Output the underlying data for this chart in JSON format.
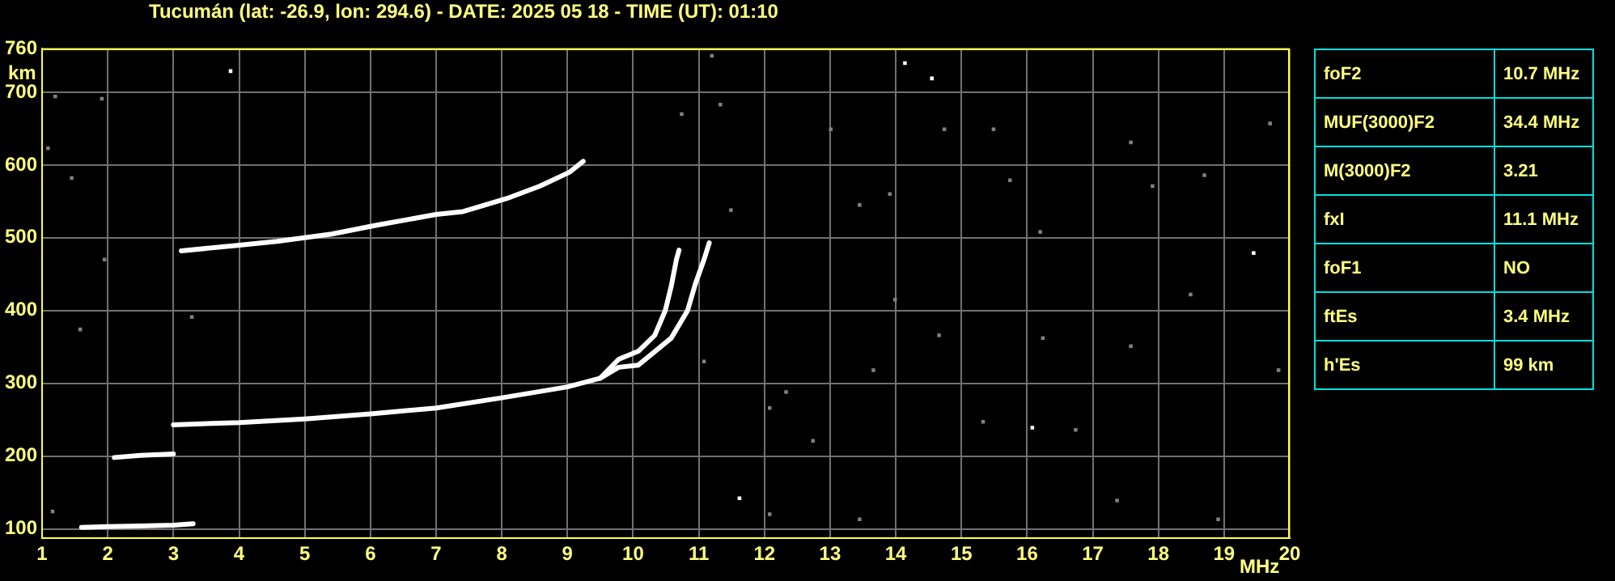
{
  "chart_data": [
    {
      "type": "scatter",
      "title": "Tucumán (lat: -26.9, lon: 294.6) - DATE: 2025 05 18 - TIME (UT): 01:10",
      "xlabel": "MHz",
      "ylabel": "km",
      "xlim": [
        1,
        20
      ],
      "xticks": [
        1,
        2,
        3,
        4,
        5,
        6,
        7,
        8,
        9,
        10,
        11,
        12,
        13,
        14,
        15,
        16,
        17,
        18,
        19,
        20
      ],
      "ylim": [
        87,
        760
      ],
      "yticks": [
        100,
        200,
        300,
        400,
        500,
        600,
        700,
        760
      ],
      "grid": true,
      "legend": false,
      "marker": "square",
      "series": [
        {
          "type": "line",
          "marker": "none",
          "line_style": "solid",
          "color": "#ffffff",
          "x": [
            1.6,
            2.0,
            2.5,
            3.0,
            3.3
          ],
          "values": [
            102,
            103,
            104,
            105,
            107
          ]
        },
        {
          "type": "line",
          "marker": "none",
          "line_style": "solid",
          "color": "#ffffff",
          "x": [
            2.1,
            2.5,
            3.0
          ],
          "values": [
            198,
            201,
            203
          ]
        },
        {
          "type": "line",
          "marker": "none",
          "line_style": "solid",
          "color": "#ffffff",
          "x": [
            3.0,
            4.0,
            5.0,
            6.0,
            7.0,
            8.0,
            9.0,
            9.5,
            9.78,
            10.08,
            10.33,
            10.49,
            10.58,
            10.66,
            10.7
          ],
          "values": [
            243,
            246,
            251,
            258,
            266,
            280,
            295,
            307,
            333,
            344,
            366,
            400,
            433,
            470,
            483
          ]
        },
        {
          "type": "line",
          "marker": "none",
          "line_style": "solid",
          "color": "#ffffff",
          "x": [
            9.5,
            9.78,
            10.08,
            10.58,
            10.83,
            10.95,
            11.08,
            11.16
          ],
          "values": [
            307,
            322,
            325,
            362,
            400,
            437,
            470,
            493
          ]
        },
        {
          "type": "line",
          "marker": "none",
          "line_style": "solid",
          "color": "#ffffff",
          "x": [
            3.12,
            3.91,
            4.58,
            5.41,
            6.08,
            7.0,
            7.41,
            8.08,
            8.58,
            9.03,
            9.24
          ],
          "values": [
            482,
            489,
            495,
            505,
            517,
            532,
            536,
            554,
            571,
            590,
            605
          ]
        },
        {
          "color": "#ffffff",
          "x": [
            3.87,
            14.14,
            14.55,
            16.08,
            19.45,
            11.62
          ],
          "values": [
            729,
            740,
            719,
            239,
            479,
            142
          ]
        },
        {
          "color": "#808080",
          "x": [
            13.45,
            13.91,
            16.2,
            17.91,
            18.7,
            15.49,
            19.7,
            13.01,
            17.58,
            14.74,
            15.33,
            16.74,
            17.37,
            13.45,
            18.91,
            14.66,
            17.58,
            13.66,
            18.49,
            15.74,
            12.74,
            19.83,
            16.24,
            13.99,
            1.2,
            1.91,
            1.45,
            1.09,
            1.95,
            10.74,
            11.33,
            11.2,
            1.16,
            1.58,
            12.08,
            3.28,
            11.08,
            12.33,
            11.49,
            12.08
          ],
          "values": [
            545,
            560,
            508,
            571,
            586,
            649,
            657,
            649,
            631,
            649,
            247,
            236,
            139,
            113,
            113,
            366,
            351,
            318,
            422,
            579,
            221,
            318,
            362,
            415,
            694,
            691,
            582,
            623,
            470,
            670,
            683,
            750,
            124,
            374,
            120,
            391,
            330,
            288,
            538,
            266
          ]
        }
      ]
    },
    {
      "type": "other",
      "categories": [
        "foF2",
        "MUF(3000)F2",
        "M(3000)F2",
        "fxI",
        "foF1",
        "ftEs",
        "h'Es"
      ],
      "value_labels": [
        "10.7 MHz",
        "34.4 MHz",
        "3.21",
        "11.1 MHz",
        "NO",
        "3.4 MHz",
        "99 km"
      ]
    }
  ]
}
